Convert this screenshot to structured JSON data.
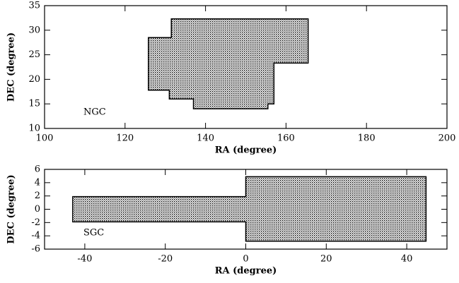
{
  "chart_data": [
    {
      "type": "polygon",
      "annotation": "NGC",
      "xlabel": "RA (degree)",
      "ylabel": "DEC (degree)",
      "color": "#000000",
      "x": [
        131.5,
        165.5,
        165.5,
        157,
        157,
        155.5,
        155.5,
        137,
        137,
        131,
        131,
        125.8,
        125.8,
        131.5
      ],
      "y": [
        32.3,
        32.3,
        23.3,
        23.3,
        15,
        15,
        14,
        14,
        16,
        16,
        17.8,
        17.8,
        28.5,
        28.5
      ],
      "xlim": [
        100,
        200
      ],
      "ylim": [
        10,
        35
      ],
      "xticks": [
        100,
        120,
        140,
        160,
        180,
        200
      ],
      "yticks": [
        10,
        15,
        20,
        25,
        30,
        35
      ]
    },
    {
      "type": "polygon",
      "annotation": "SGC",
      "xlabel": "RA (degree)",
      "ylabel": "DEC (degree)",
      "color": "#000000",
      "x": [
        -43,
        0,
        0,
        44.8,
        44.8,
        0,
        0,
        -43
      ],
      "y": [
        -1.9,
        -1.9,
        -4.8,
        -4.8,
        4.9,
        4.9,
        1.9,
        1.9
      ],
      "xlim": [
        -50,
        50
      ],
      "ylim": [
        -6,
        6
      ],
      "xticks": [
        -40,
        -20,
        0,
        20,
        40
      ],
      "yticks": [
        -6,
        -4,
        -2,
        0,
        2,
        4,
        6
      ]
    }
  ]
}
